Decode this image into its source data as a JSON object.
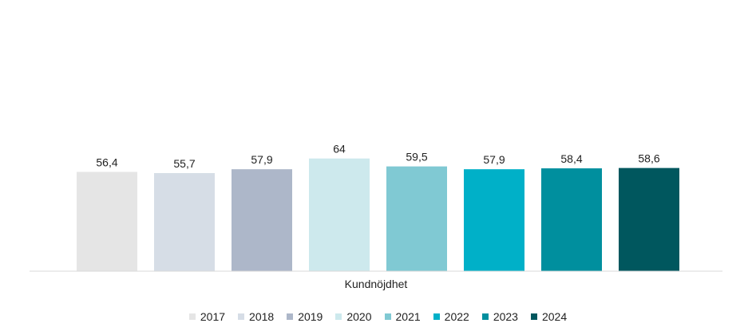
{
  "chart_data": {
    "type": "bar",
    "categories": [
      "Kundnöjdhet"
    ],
    "series": [
      {
        "name": "2017",
        "values": [
          56.4
        ],
        "label": "56,4",
        "color": "#e5e5e5"
      },
      {
        "name": "2018",
        "values": [
          55.7
        ],
        "label": "55,7",
        "color": "#d6dde6"
      },
      {
        "name": "2019",
        "values": [
          57.9
        ],
        "label": "57,9",
        "color": "#adb7c9"
      },
      {
        "name": "2020",
        "values": [
          64
        ],
        "label": "64",
        "color": "#cde9ed"
      },
      {
        "name": "2021",
        "values": [
          59.5
        ],
        "label": "59,5",
        "color": "#80c9d3"
      },
      {
        "name": "2022",
        "values": [
          57.9
        ],
        "label": "57,9",
        "color": "#00b0c8"
      },
      {
        "name": "2023",
        "values": [
          58.4
        ],
        "label": "58,4",
        "color": "#008f9e"
      },
      {
        "name": "2024",
        "values": [
          58.6
        ],
        "label": "58,6",
        "color": "#00575e"
      }
    ],
    "ylim": [
      0,
      154
    ],
    "grid": false,
    "legend_position": "bottom",
    "xlabel": "",
    "ylabel": "",
    "title": ""
  }
}
